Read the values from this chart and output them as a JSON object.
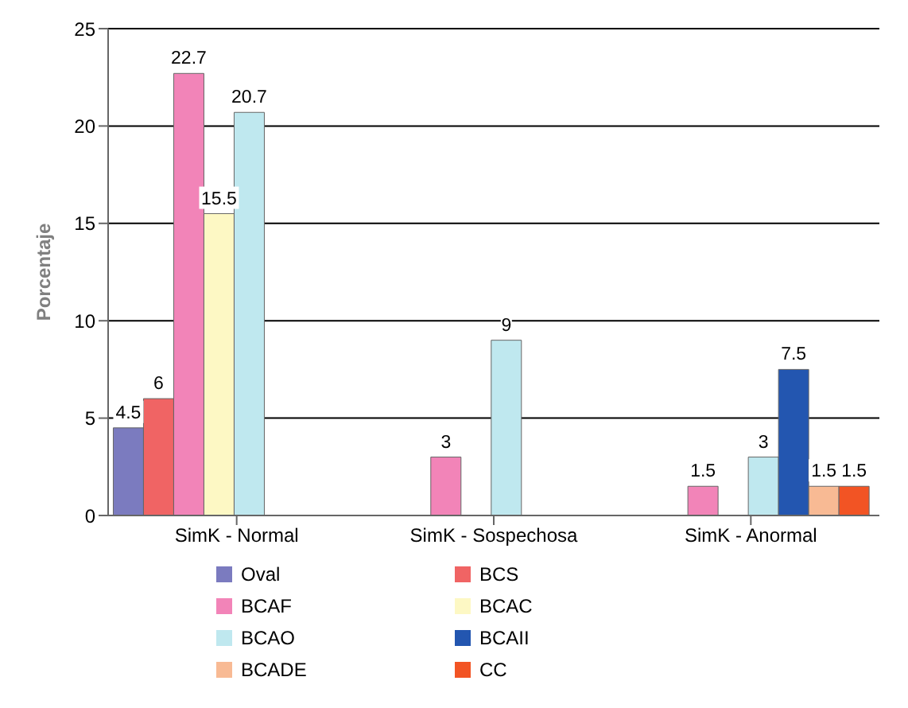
{
  "chart_data": {
    "type": "bar",
    "ylabel": "Porcentaje",
    "categories": [
      "SimK - Normal",
      "SimK - Sospechosa",
      "SimK - Anormal"
    ],
    "series": [
      {
        "name": "Oval",
        "color": "#7b7bbf",
        "values": [
          4.5,
          null,
          null
        ]
      },
      {
        "name": "BCS",
        "color": "#f06464",
        "values": [
          6,
          null,
          null
        ]
      },
      {
        "name": "BCAF",
        "color": "#f284b8",
        "values": [
          22.7,
          3,
          1.5
        ]
      },
      {
        "name": "BCAC",
        "color": "#fdf8c4",
        "values": [
          15.5,
          null,
          null
        ]
      },
      {
        "name": "BCAO",
        "color": "#bfe8ef",
        "values": [
          20.7,
          9,
          3
        ]
      },
      {
        "name": "BCAII",
        "color": "#2356b0",
        "values": [
          null,
          null,
          7.5
        ]
      },
      {
        "name": "BCADE",
        "color": "#f8ba94",
        "values": [
          null,
          null,
          1.5
        ]
      },
      {
        "name": "CC",
        "color": "#f25424",
        "values": [
          null,
          null,
          1.5
        ]
      }
    ],
    "ylim": [
      0,
      25
    ],
    "yticks": [
      0,
      5,
      10,
      15,
      20,
      25
    ],
    "grid": "y",
    "legend": "bottom",
    "data_labels": true
  }
}
